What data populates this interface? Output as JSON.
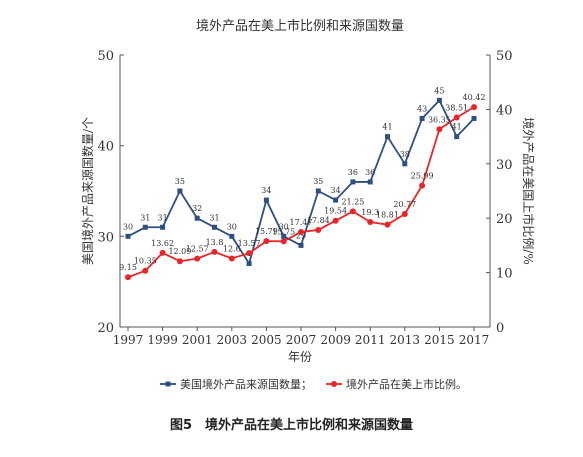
{
  "caption": "图5　境外产品在美上市比例和来源国数量",
  "chart_data": {
    "type": "line",
    "title": "境外产品在美上市比例和来源国数量",
    "xlabel": "年份",
    "ylabel_left": "美国境外产品来源国数量/个",
    "ylabel_right": "境外产品在美国上市比例/%",
    "x": [
      1997,
      1998,
      1999,
      2000,
      2001,
      2002,
      2003,
      2004,
      2005,
      2006,
      2007,
      2008,
      2009,
      2010,
      2011,
      2012,
      2013,
      2014,
      2015,
      2016,
      2017
    ],
    "x_ticks": [
      1997,
      1999,
      2001,
      2003,
      2005,
      2007,
      2009,
      2011,
      2013,
      2015,
      2017
    ],
    "ylim_left": [
      20,
      50
    ],
    "yticks_left": [
      20,
      30,
      40,
      50
    ],
    "ylim_right": [
      0,
      50
    ],
    "yticks_right": [
      0,
      10,
      20,
      30,
      40,
      50
    ],
    "legend_position": "bottom",
    "series": [
      {
        "name": "美国境外产品来源国数量；",
        "axis": "left",
        "color": "#2e4f7f",
        "marker": "square",
        "values": [
          30,
          31,
          31,
          35,
          32,
          31,
          30,
          27,
          34,
          30,
          29,
          35,
          34,
          36,
          36,
          41,
          38,
          43,
          45,
          41,
          43
        ],
        "labels": [
          "30",
          "31",
          "31",
          "35",
          "32",
          "31",
          "30",
          "",
          "34",
          "30",
          "29",
          "35",
          "34",
          "36",
          "36",
          "41",
          "38",
          "43",
          "45",
          "41",
          ""
        ]
      },
      {
        "name": "境外产品在美上市比例。",
        "axis": "right",
        "color": "#e8262a",
        "marker": "circle",
        "values": [
          9.15,
          10.35,
          13.62,
          12.09,
          12.57,
          13.8,
          12.6,
          13.57,
          15.79,
          15.75,
          17.47,
          17.84,
          19.54,
          21.25,
          19.3,
          18.81,
          20.77,
          25.99,
          36.35,
          38.51,
          40.42
        ],
        "labels": [
          "9.15",
          "10.35",
          "13.62",
          "12.09",
          "12.57",
          "13.8",
          "12.6",
          "13.57",
          "15.79",
          "15.75",
          "17.47",
          "17.84",
          "19.54",
          "21.25",
          "19.3",
          "18.81",
          "20.77",
          "25.99",
          "36.35",
          "38.51",
          "40.42"
        ]
      }
    ]
  }
}
